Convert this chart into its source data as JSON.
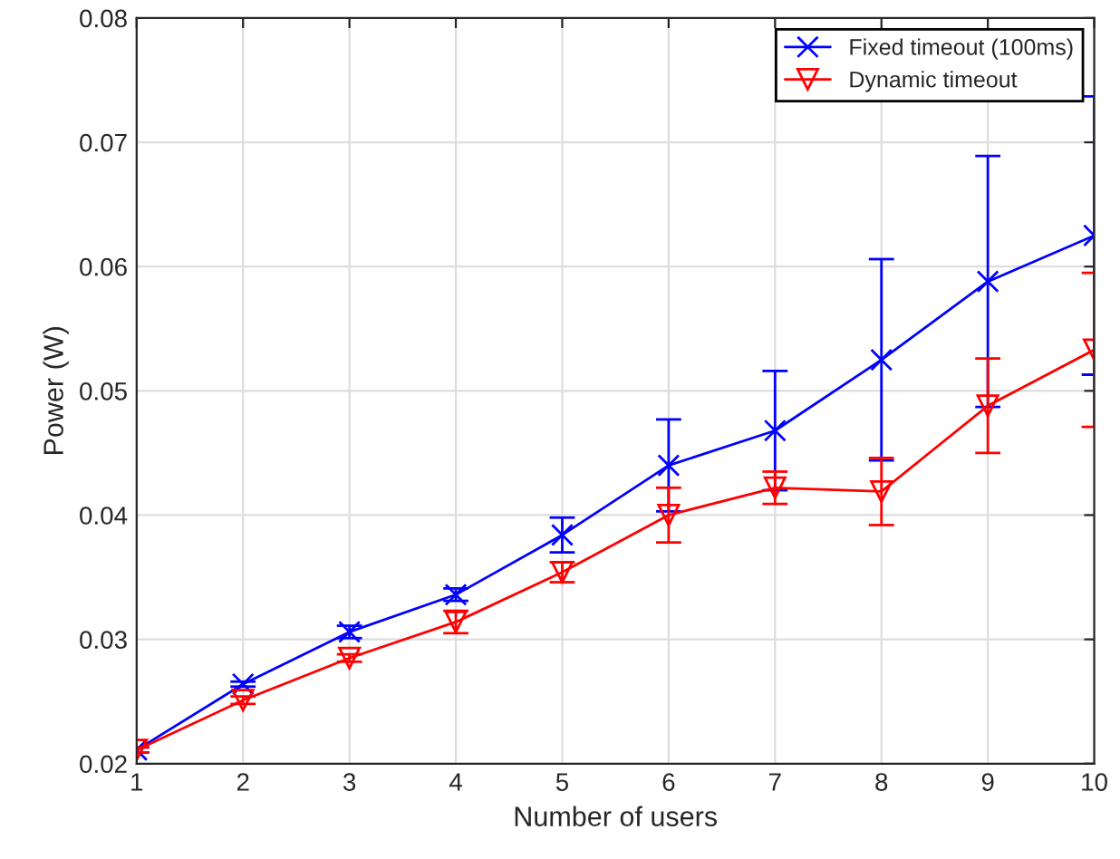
{
  "chart_data": {
    "type": "line",
    "xlabel": "Number of users",
    "ylabel": "Power (W)",
    "x": [
      1,
      2,
      3,
      4,
      5,
      6,
      7,
      8,
      9,
      10
    ],
    "series": [
      {
        "name": "Fixed timeout (100ms)",
        "color": "#0000ff",
        "marker": "cross",
        "values": [
          0.0211,
          0.0264,
          0.0306,
          0.0336,
          0.0384,
          0.044,
          0.0468,
          0.0525,
          0.0588,
          0.0625
        ],
        "errors": [
          0.0002,
          0.0002,
          0.0005,
          0.0005,
          0.0014,
          0.0037,
          0.0048,
          0.0081,
          0.0101,
          0.0112
        ]
      },
      {
        "name": "Dynamic timeout",
        "color": "#ff0000",
        "marker": "triangle",
        "values": [
          0.0211,
          0.0251,
          0.0285,
          0.0314,
          0.0354,
          0.04,
          0.0422,
          0.0419,
          0.0488,
          0.0533
        ],
        "errors": [
          0.0002,
          0.0003,
          0.0003,
          0.0009,
          0.0008,
          0.0022,
          0.0013,
          0.0027,
          0.0038,
          0.0062
        ]
      }
    ],
    "xlim": [
      1,
      10
    ],
    "xticks": [
      1,
      2,
      3,
      4,
      5,
      6,
      7,
      8,
      9,
      10
    ],
    "ylim": [
      0.02,
      0.08
    ],
    "yticks": [
      0.02,
      0.03,
      0.04,
      0.05,
      0.06,
      0.07,
      0.08
    ],
    "grid": true,
    "legend": "top right",
    "line_style": "solid"
  }
}
